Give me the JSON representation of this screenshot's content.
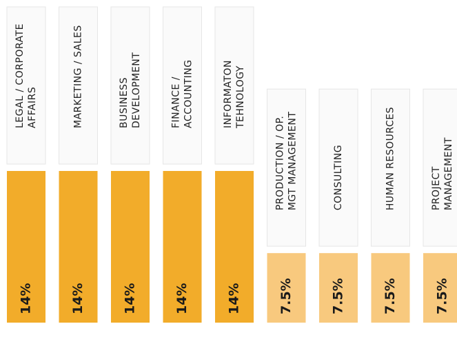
{
  "chart_data": {
    "type": "bar",
    "categories": [
      "LEGAL / CORPORATE\nAFFAIRS",
      "MARKETING / SALES",
      "BUSINESS\nDEVELOPMENT",
      "FINANCE /\nACCOUNTING",
      "INFORMATON\nTEHNOLOGY",
      "PRODUCTION / OP.\nMGT MANAGEMENT",
      "CONSULTING",
      "HUMAN RESOURCES",
      "PROJECT\nMANAGEMENT"
    ],
    "values": [
      14,
      14,
      14,
      14,
      14,
      7.5,
      7.5,
      7.5,
      7.5
    ],
    "value_labels": [
      "14%",
      "14%",
      "14%",
      "14%",
      "14%",
      "7.5%",
      "7.5%",
      "7.5%",
      "7.5%"
    ],
    "colors": [
      "#f2ac2a",
      "#f2ac2a",
      "#f2ac2a",
      "#f2ac2a",
      "#f2ac2a",
      "#f8c97e",
      "#f8c97e",
      "#f8c97e",
      "#f8c97e"
    ],
    "ylim": [
      2,
      14
    ]
  }
}
